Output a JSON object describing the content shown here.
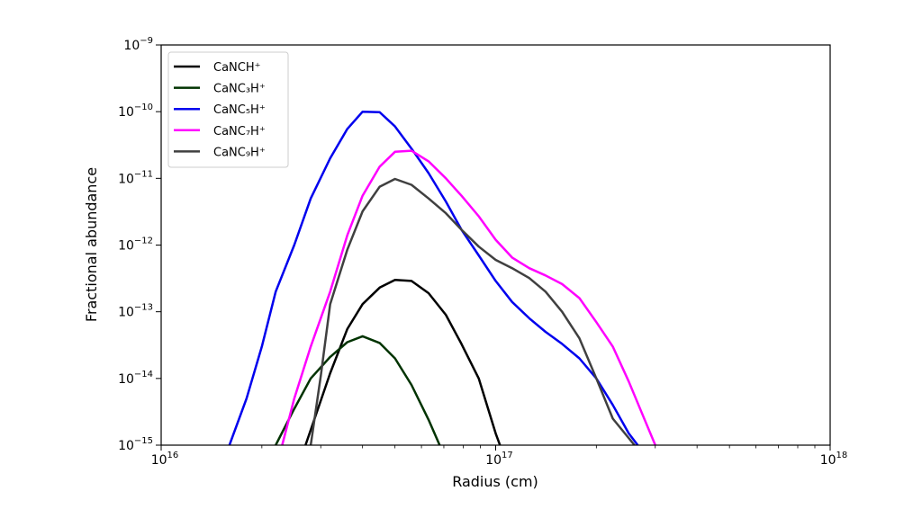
{
  "chart_data": {
    "type": "line",
    "xlabel": "Radius (cm)",
    "ylabel": "Fractional abundance",
    "xscale": "log",
    "yscale": "log",
    "xlim": [
      1e+16,
      1e+18
    ],
    "ylim": [
      1e-15,
      1e-09
    ],
    "grid": false,
    "legend_placement": "top-left",
    "x_ticks": [
      {
        "base": "10",
        "exp": "16",
        "value": 1e+16
      },
      {
        "base": "10",
        "exp": "17",
        "value": 1e+17
      },
      {
        "base": "10",
        "exp": "18",
        "value": 1e+18
      }
    ],
    "y_ticks": [
      {
        "base": "10",
        "exp": "−15",
        "value": 1e-15
      },
      {
        "base": "10",
        "exp": "−14",
        "value": 1e-14
      },
      {
        "base": "10",
        "exp": "−13",
        "value": 1e-13
      },
      {
        "base": "10",
        "exp": "−12",
        "value": 1e-12
      },
      {
        "base": "10",
        "exp": "−11",
        "value": 1e-11
      },
      {
        "base": "10",
        "exp": "−10",
        "value": 1e-10
      },
      {
        "base": "10",
        "exp": "−9",
        "value": 1e-09
      }
    ],
    "series": [
      {
        "name": "CaNCH⁺",
        "color": "#000000",
        "points": [
          [
            2.7e+16,
            1e-15
          ],
          [
            3.2e+16,
            1.2e-14
          ],
          [
            3.6e+16,
            5.5e-14
          ],
          [
            4e+16,
            1.3e-13
          ],
          [
            4.5e+16,
            2.3e-13
          ],
          [
            5e+16,
            3e-13
          ],
          [
            5.6e+16,
            2.9e-13
          ],
          [
            6.3e+16,
            1.9e-13
          ],
          [
            7.1e+16,
            9e-14
          ],
          [
            7.9e+16,
            3.3e-14
          ],
          [
            8.9e+16,
            1e-14
          ],
          [
            1e+17,
            1.5e-15
          ],
          [
            1.03e+17,
            1e-15
          ]
        ]
      },
      {
        "name": "CaNC₃H⁺",
        "color": "#003300",
        "points": [
          [
            2.2e+16,
            1e-15
          ],
          [
            2.5e+16,
            3.5e-15
          ],
          [
            2.8e+16,
            1e-14
          ],
          [
            3.2e+16,
            2.1e-14
          ],
          [
            3.6e+16,
            3.5e-14
          ],
          [
            4e+16,
            4.3e-14
          ],
          [
            4.5e+16,
            3.4e-14
          ],
          [
            5e+16,
            2e-14
          ],
          [
            5.6e+16,
            8e-15
          ],
          [
            6.3e+16,
            2.4e-15
          ],
          [
            6.8e+16,
            1e-15
          ]
        ]
      },
      {
        "name": "CaNC₅H⁺",
        "color": "#0000ee",
        "points": [
          [
            1.6e+16,
            1e-15
          ],
          [
            1.8e+16,
            5e-15
          ],
          [
            2e+16,
            3e-14
          ],
          [
            2.2e+16,
            2e-13
          ],
          [
            2.5e+16,
            1e-12
          ],
          [
            2.8e+16,
            5e-12
          ],
          [
            3.2e+16,
            2e-11
          ],
          [
            3.6e+16,
            5.5e-11
          ],
          [
            4e+16,
            1e-10
          ],
          [
            4.5e+16,
            9.8e-11
          ],
          [
            5e+16,
            6e-11
          ],
          [
            5.6e+16,
            2.8e-11
          ],
          [
            6.3e+16,
            1.2e-11
          ],
          [
            7.1e+16,
            4.5e-12
          ],
          [
            7.9e+16,
            1.7e-12
          ],
          [
            8.9e+16,
            7e-13
          ],
          [
            1e+17,
            2.9e-13
          ],
          [
            1.12e+17,
            1.4e-13
          ],
          [
            1.26e+17,
            8e-14
          ],
          [
            1.41e+17,
            5e-14
          ],
          [
            1.58e+17,
            3.3e-14
          ],
          [
            1.78e+17,
            2e-14
          ],
          [
            2e+17,
            1e-14
          ],
          [
            2.24e+17,
            4e-15
          ],
          [
            2.5e+17,
            1.5e-15
          ],
          [
            2.66e+17,
            1e-15
          ]
        ]
      },
      {
        "name": "CaNC₇H⁺",
        "color": "#ff00ff",
        "points": [
          [
            2.3e+16,
            1e-15
          ],
          [
            2.5e+16,
            5e-15
          ],
          [
            2.8e+16,
            3e-14
          ],
          [
            3.2e+16,
            2e-13
          ],
          [
            3.6e+16,
            1.4e-12
          ],
          [
            4e+16,
            5.5e-12
          ],
          [
            4.5e+16,
            1.5e-11
          ],
          [
            5e+16,
            2.5e-11
          ],
          [
            5.6e+16,
            2.6e-11
          ],
          [
            6.3e+16,
            1.8e-11
          ],
          [
            7.1e+16,
            1e-11
          ],
          [
            7.9e+16,
            5.5e-12
          ],
          [
            8.9e+16,
            2.7e-12
          ],
          [
            1e+17,
            1.2e-12
          ],
          [
            1.12e+17,
            6.5e-13
          ],
          [
            1.26e+17,
            4.5e-13
          ],
          [
            1.41e+17,
            3.5e-13
          ],
          [
            1.58e+17,
            2.6e-13
          ],
          [
            1.78e+17,
            1.6e-13
          ],
          [
            2e+17,
            7e-14
          ],
          [
            2.24e+17,
            3e-14
          ],
          [
            2.5e+17,
            9e-15
          ],
          [
            2.8e+17,
            2.3e-15
          ],
          [
            3e+17,
            1e-15
          ]
        ]
      },
      {
        "name": "CaNC₉H⁺",
        "color": "#404040",
        "points": [
          [
            2.8e+16,
            1e-15
          ],
          [
            3e+16,
            1.1e-14
          ],
          [
            3.2e+16,
            1.3e-13
          ],
          [
            3.6e+16,
            8.5e-13
          ],
          [
            4e+16,
            3.2e-12
          ],
          [
            4.5e+16,
            7.5e-12
          ],
          [
            5e+16,
            9.8e-12
          ],
          [
            5.6e+16,
            8e-12
          ],
          [
            6.3e+16,
            5e-12
          ],
          [
            7.1e+16,
            3e-12
          ],
          [
            7.9e+16,
            1.7e-12
          ],
          [
            8.9e+16,
            9.5e-13
          ],
          [
            1e+17,
            6e-13
          ],
          [
            1.12e+17,
            4.5e-13
          ],
          [
            1.26e+17,
            3.2e-13
          ],
          [
            1.41e+17,
            2e-13
          ],
          [
            1.58e+17,
            1e-13
          ],
          [
            1.78e+17,
            4e-14
          ],
          [
            2e+17,
            1e-14
          ],
          [
            2.24e+17,
            2.5e-15
          ],
          [
            2.6e+17,
            1e-15
          ]
        ]
      }
    ]
  }
}
